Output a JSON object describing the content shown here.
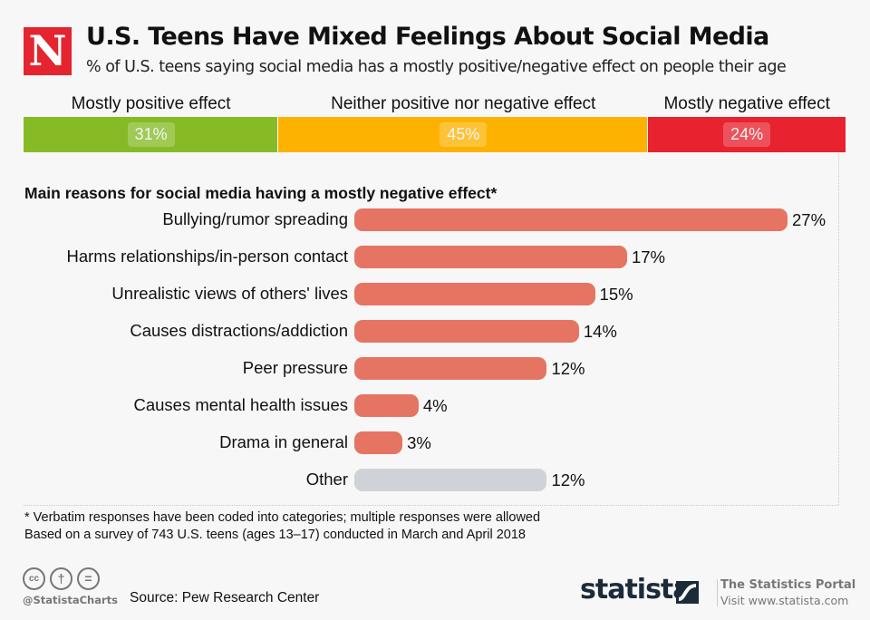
{
  "header": {
    "logo_letter": "N",
    "title": "U.S. Teens Have Mixed Feelings About Social Media",
    "subtitle": "% of U.S. teens saying social media has a mostly positive/negative effect on people their age"
  },
  "chart_data": [
    {
      "type": "bar",
      "stacked": true,
      "orientation": "horizontal",
      "title": "% of U.S. teens saying social media has a mostly positive/negative effect on people their age",
      "categories": [
        "Mostly positive effect",
        "Neither positive nor negative effect",
        "Mostly negative effect"
      ],
      "values": [
        31,
        45,
        24
      ],
      "value_labels": [
        "31%",
        "45%",
        "24%"
      ],
      "colors": [
        "#86bb26",
        "#fdb201",
        "#e8222f"
      ],
      "xlim": [
        0,
        100
      ]
    },
    {
      "type": "bar",
      "orientation": "horizontal",
      "title": "Main reasons for social media having a mostly negative effect*",
      "categories": [
        "Bullying/rumor spreading",
        "Harms relationships/in-person contact",
        "Unrealistic views of others' lives",
        "Causes distractions/addiction",
        "Peer pressure",
        "Causes mental health issues",
        "Drama in general",
        "Other"
      ],
      "values": [
        27,
        17,
        15,
        14,
        12,
        4,
        3,
        12
      ],
      "value_labels": [
        "27%",
        "17%",
        "15%",
        "14%",
        "12%",
        "4%",
        "3%",
        "12%"
      ],
      "colors": [
        "#e67462",
        "#e67462",
        "#e67462",
        "#e67462",
        "#e67462",
        "#e67462",
        "#e67462",
        "#cfd3d7"
      ],
      "xlabel": "",
      "ylabel": "",
      "xlim": [
        0,
        27
      ],
      "grid": false,
      "legend": "none"
    }
  ],
  "footnotes": {
    "note1": "*  Verbatim responses have been coded into categories; multiple responses were allowed",
    "note2": "Based on a survey of 743 U.S. teens (ages 13–17) conducted in March and April 2018"
  },
  "footer": {
    "cc_icons": [
      "cc-icon",
      "by-attribution-icon",
      "no-derivatives-icon"
    ],
    "cc_glyphs": [
      "cc",
      "†",
      "="
    ],
    "handle": "@StatistaCharts",
    "source": "Source: Pew Research Center",
    "brand": "statista",
    "portal_title": "The Statistics Portal",
    "portal_url": "Visit www.statista.com"
  }
}
